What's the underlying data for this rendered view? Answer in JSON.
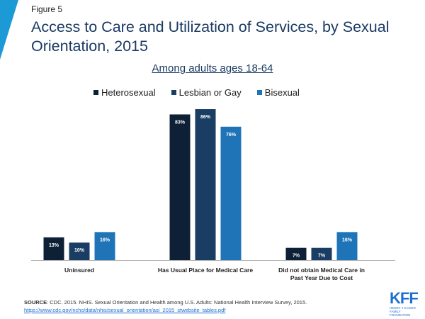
{
  "figure_label": "Figure 5",
  "title": "Access to Care and Utilization of Services, by Sexual Orientation, 2015",
  "subtitle": "Among adults ages 18-64",
  "colors": {
    "accent": "#1c9ad6",
    "heterosexual": "#0d2035",
    "lesbian_or_gay": "#1a3e63",
    "bisexual": "#1f74b8"
  },
  "footer": {
    "source_label": "SOURCE",
    "source_text": ": CDC. 2015. NHIS. Sexual Orientation and Health among U.S. Adults: National Health Interview Survey, 2015.",
    "source_link": "https://www.cdc.gov/nchs/data/nhis/sexual_orientation/asi_2015_stwebsite_tables.pdf"
  },
  "logo": {
    "mark": "KFF",
    "sub": "HENRY J KAISER FAMILY FOUNDATION"
  },
  "chart_data": {
    "type": "bar",
    "categories": [
      "Uninsured",
      "Has Usual Place for Medical Care",
      "Did not obtain Medical Care in Past Year Due to Cost"
    ],
    "series": [
      {
        "name": "Heterosexual",
        "values": [
          13,
          83,
          7
        ]
      },
      {
        "name": "Lesbian or Gay",
        "values": [
          10,
          86,
          7
        ]
      },
      {
        "name": "Bisexual",
        "values": [
          16,
          76,
          16
        ]
      }
    ],
    "value_suffix": "%",
    "ylim": [
      0,
      86
    ],
    "legend_position": "top",
    "grid": false
  }
}
